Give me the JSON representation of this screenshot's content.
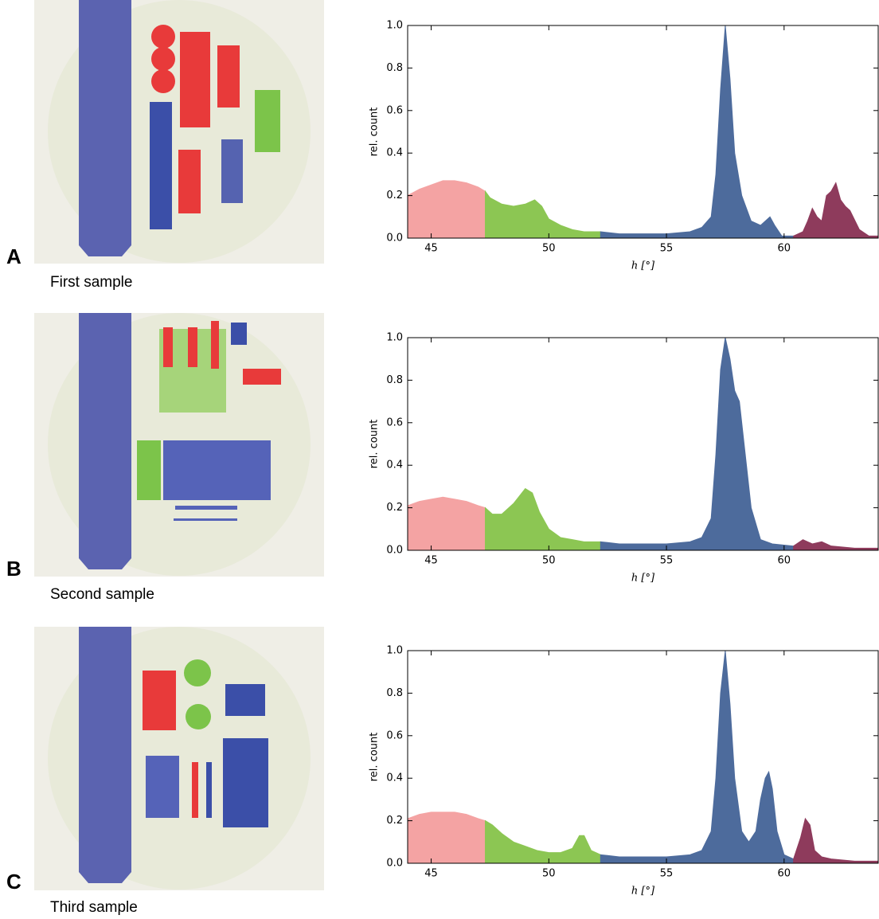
{
  "chart_data": [
    {
      "type": "area",
      "panel": "A",
      "caption": "First sample",
      "ylabel": "rel. count",
      "xlabel": "h [°]",
      "xlim": [
        44,
        64
      ],
      "ylim": [
        0,
        1
      ],
      "xticks": [
        45,
        50,
        55,
        60
      ],
      "yticks": [
        {
          "value": 0,
          "label": "0.0"
        },
        0.2,
        0.4,
        0.6,
        0.8,
        {
          "value": 1,
          "label": "1.0"
        }
      ],
      "series": [
        {
          "color": "#f4a3a3",
          "x": [
            44,
            44.5,
            45,
            45.5,
            46,
            46.5,
            47,
            47.3
          ],
          "values": [
            0.2,
            0.23,
            0.25,
            0.27,
            0.27,
            0.26,
            0.24,
            0.22
          ]
        },
        {
          "color": "#8cc653",
          "x": [
            47.3,
            47.5,
            48,
            48.5,
            49,
            49.4,
            49.7,
            50,
            50.5,
            51,
            51.5,
            52.2
          ],
          "values": [
            0.22,
            0.19,
            0.16,
            0.15,
            0.16,
            0.18,
            0.15,
            0.09,
            0.06,
            0.04,
            0.03,
            0.03
          ]
        },
        {
          "color": "#4d6b9c",
          "x": [
            52.2,
            53,
            54,
            55,
            56,
            56.5,
            56.9,
            57.1,
            57.3,
            57.5,
            57.7,
            57.9,
            58.2,
            58.6,
            59,
            59.4,
            59.6,
            59.9,
            60.4
          ],
          "values": [
            0.03,
            0.02,
            0.02,
            0.02,
            0.03,
            0.05,
            0.1,
            0.3,
            0.7,
            1.0,
            0.75,
            0.4,
            0.2,
            0.08,
            0.06,
            0.1,
            0.06,
            0.01,
            0.01
          ]
        },
        {
          "color": "#8e3b5c",
          "x": [
            60.4,
            60.8,
            61,
            61.2,
            61.4,
            61.6,
            61.8,
            62,
            62.2,
            62.4,
            62.6,
            62.8,
            63.2,
            63.6,
            64
          ],
          "values": [
            0.01,
            0.03,
            0.08,
            0.14,
            0.1,
            0.08,
            0.2,
            0.22,
            0.26,
            0.18,
            0.15,
            0.13,
            0.04,
            0.01,
            0.01
          ]
        }
      ]
    },
    {
      "type": "area",
      "panel": "B",
      "caption": "Second sample",
      "ylabel": "rel. count",
      "xlabel": "h [°]",
      "xlim": [
        44,
        64
      ],
      "ylim": [
        0,
        1
      ],
      "xticks": [
        45,
        50,
        55,
        60
      ],
      "yticks": [
        {
          "value": 0,
          "label": "0.0"
        },
        0.2,
        0.4,
        0.6,
        0.8,
        {
          "value": 1,
          "label": "1.0"
        }
      ],
      "series": [
        {
          "color": "#f4a3a3",
          "x": [
            44,
            44.5,
            45,
            45.5,
            46,
            46.5,
            47,
            47.3
          ],
          "values": [
            0.21,
            0.23,
            0.24,
            0.25,
            0.24,
            0.23,
            0.21,
            0.2
          ]
        },
        {
          "color": "#8cc653",
          "x": [
            47.3,
            47.6,
            48,
            48.5,
            49,
            49.3,
            49.6,
            50,
            50.5,
            51,
            51.5,
            52.2
          ],
          "values": [
            0.2,
            0.17,
            0.17,
            0.22,
            0.29,
            0.27,
            0.18,
            0.1,
            0.06,
            0.05,
            0.04,
            0.04
          ]
        },
        {
          "color": "#4d6b9c",
          "x": [
            52.2,
            53,
            54,
            55,
            56,
            56.5,
            56.9,
            57.1,
            57.3,
            57.5,
            57.7,
            57.9,
            58.1,
            58.3,
            58.6,
            59,
            59.5,
            60.4
          ],
          "values": [
            0.04,
            0.03,
            0.03,
            0.03,
            0.04,
            0.06,
            0.15,
            0.45,
            0.85,
            1.0,
            0.9,
            0.75,
            0.7,
            0.5,
            0.2,
            0.05,
            0.03,
            0.02
          ]
        },
        {
          "color": "#8e3b5c",
          "x": [
            60.4,
            60.8,
            61.2,
            61.6,
            62,
            63,
            64
          ],
          "values": [
            0.02,
            0.05,
            0.03,
            0.04,
            0.02,
            0.01,
            0.01
          ]
        }
      ]
    },
    {
      "type": "area",
      "panel": "C",
      "caption": "Third sample",
      "ylabel": "rel. count",
      "xlabel": "h [°]",
      "xlim": [
        44,
        64
      ],
      "ylim": [
        0,
        1
      ],
      "xticks": [
        45,
        50,
        55,
        60
      ],
      "yticks": [
        {
          "value": 0,
          "label": "0.0"
        },
        0.2,
        0.4,
        0.6,
        0.8,
        {
          "value": 1,
          "label": "1.0"
        }
      ],
      "series": [
        {
          "color": "#f4a3a3",
          "x": [
            44,
            44.5,
            45,
            45.5,
            46,
            46.5,
            47,
            47.3
          ],
          "values": [
            0.21,
            0.23,
            0.24,
            0.24,
            0.24,
            0.23,
            0.21,
            0.2
          ]
        },
        {
          "color": "#8cc653",
          "x": [
            47.3,
            47.6,
            48,
            48.5,
            49,
            49.5,
            50,
            50.5,
            51,
            51.3,
            51.5,
            51.8,
            52.2
          ],
          "values": [
            0.2,
            0.18,
            0.14,
            0.1,
            0.08,
            0.06,
            0.05,
            0.05,
            0.07,
            0.13,
            0.13,
            0.06,
            0.04
          ]
        },
        {
          "color": "#4d6b9c",
          "x": [
            52.2,
            53,
            54,
            55,
            56,
            56.5,
            56.9,
            57.1,
            57.3,
            57.5,
            57.7,
            57.9,
            58.2,
            58.5,
            58.8,
            59,
            59.2,
            59.35,
            59.5,
            59.7,
            60,
            60.4
          ],
          "values": [
            0.04,
            0.03,
            0.03,
            0.03,
            0.04,
            0.06,
            0.15,
            0.4,
            0.8,
            1.0,
            0.75,
            0.4,
            0.15,
            0.1,
            0.15,
            0.3,
            0.4,
            0.43,
            0.35,
            0.15,
            0.04,
            0.02
          ]
        },
        {
          "color": "#8e3b5c",
          "x": [
            60.4,
            60.7,
            60.9,
            61.1,
            61.3,
            61.6,
            62,
            63,
            64
          ],
          "values": [
            0.02,
            0.12,
            0.21,
            0.18,
            0.06,
            0.03,
            0.02,
            0.01,
            0.01
          ]
        }
      ]
    }
  ]
}
